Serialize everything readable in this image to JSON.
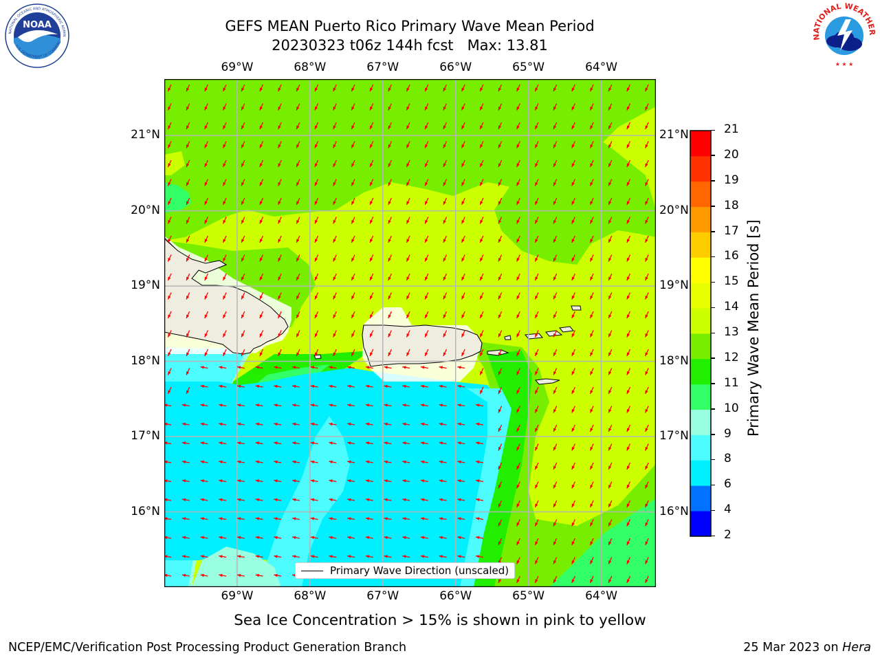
{
  "title": {
    "line1": "GEFS MEAN Puerto Rico Primary Wave Mean Period",
    "line2": "20230323 t06z 144h fcst   Max: 13.81"
  },
  "logos": {
    "left": {
      "name": "NOAA",
      "ring_text": "NATIONAL OCEANIC AND ATMOSPHERIC ADMINISTRATION",
      "bottom_text": "U.S. DEPARTMENT OF COMMERCE"
    },
    "right": {
      "name": "NATIONAL WEATHER SERVICE"
    }
  },
  "map": {
    "lon_labels": [
      "69°W",
      "68°W",
      "67°W",
      "66°W",
      "65°W",
      "64°W"
    ],
    "lat_labels": [
      "21°N",
      "20°N",
      "19°N",
      "18°N",
      "17°N",
      "16°N"
    ],
    "lon_values": [
      -69,
      -68,
      -67,
      -66,
      -65,
      -64
    ],
    "lat_values": [
      21,
      20,
      19,
      18,
      17,
      16
    ],
    "lon_range": [
      -70.0,
      -63.25
    ],
    "lat_range": [
      15.0,
      21.75
    ],
    "arrow_color": "#ff0000",
    "land_color": "#efece0"
  },
  "legend": {
    "label": "Primary Wave Direction (unscaled)"
  },
  "colorbar": {
    "label": "Primary Wave Mean Period [s]",
    "ticks": [
      "2",
      "4",
      "6",
      "8",
      "9",
      "10",
      "11",
      "12",
      "13",
      "14",
      "15",
      "16",
      "17",
      "18",
      "19",
      "20",
      "21"
    ],
    "colors": [
      "#0000ff",
      "#0072ff",
      "#00f0ff",
      "#4dfcff",
      "#99ffe0",
      "#33ff66",
      "#22ee00",
      "#77ee00",
      "#ccff00",
      "#e8ff00",
      "#ffff00",
      "#ffcc00",
      "#ff9900",
      "#ff6600",
      "#ff3300",
      "#ff0000"
    ]
  },
  "subnote": "Sea Ice Concentration > 15% is shown in pink to yellow",
  "footer": {
    "left": "NCEP/EMC/Verification Post Processing Product Generation Branch",
    "right_date": "25 Mar 2023 on ",
    "right_machine": "Hera"
  }
}
